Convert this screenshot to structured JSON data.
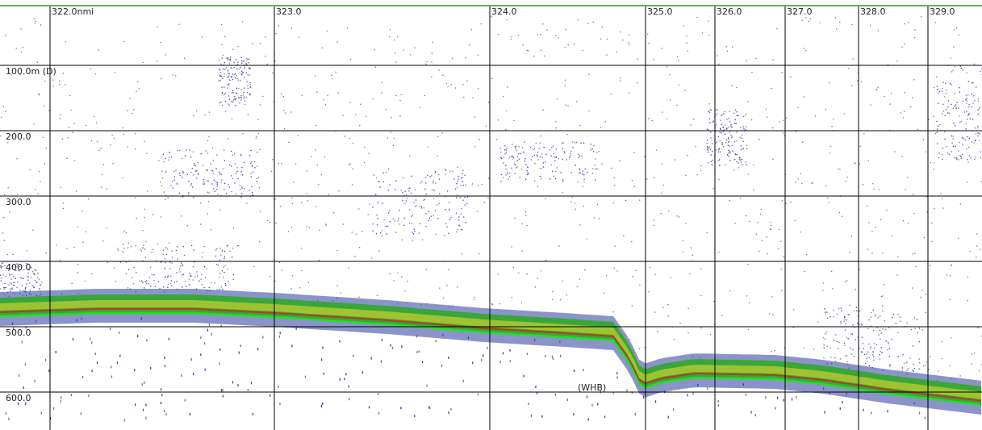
{
  "distance_labels": [
    "322.0nmi",
    "323.0",
    "324.0",
    "325.0",
    "326.0",
    "327.0",
    "328.0",
    "329.0"
  ],
  "depth_labels": [
    "100.0m (D)",
    "200.0",
    "300.0",
    "400.0",
    "500.0",
    "600.0"
  ],
  "annotation": "(WHB)"
}
